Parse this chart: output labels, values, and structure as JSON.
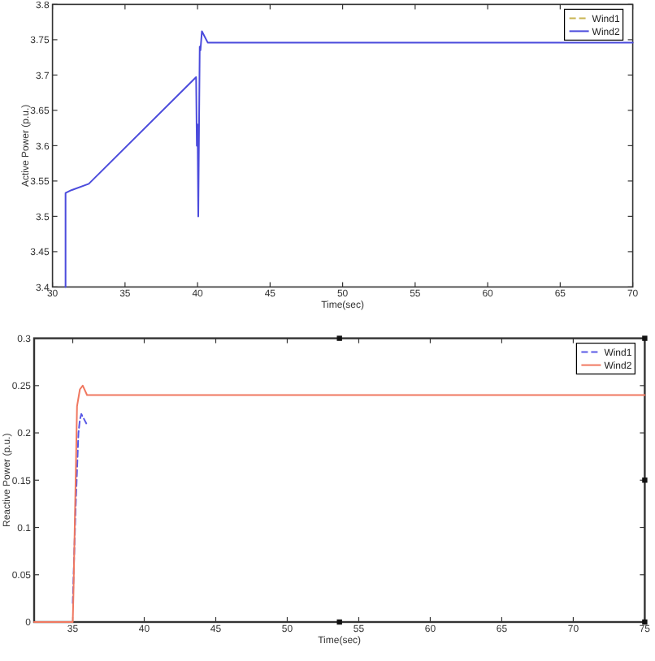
{
  "chart_data": [
    {
      "type": "line",
      "xlabel": "Time(sec)",
      "ylabel": "Active Power (p.u.)",
      "xlim": [
        30,
        70
      ],
      "ylim": [
        3.4,
        3.8
      ],
      "xticks": [
        30,
        35,
        40,
        45,
        50,
        55,
        60,
        65,
        70
      ],
      "yticks": [
        3.4,
        3.45,
        3.5,
        3.55,
        3.6,
        3.65,
        3.7,
        3.75,
        3.8
      ],
      "legend": "top right",
      "series": [
        {
          "name": "Wind1",
          "color": "#c8b450",
          "line_style": "dashed"
        },
        {
          "name": "Wind2",
          "color": "#4b4bdc",
          "line_style": "solid",
          "x": [
            30.9,
            30.9,
            31.3,
            32.5,
            39.9,
            39.95,
            40.0,
            40.05,
            40.15,
            40.2,
            40.3,
            40.7,
            70
          ],
          "values": [
            3.4,
            3.533,
            3.537,
            3.546,
            3.697,
            3.6,
            3.63,
            3.5,
            3.74,
            3.735,
            3.762,
            3.746,
            3.746
          ]
        }
      ]
    },
    {
      "type": "line",
      "xlabel": "Time(sec)",
      "ylabel": "Reactive Power (p.u.)",
      "xlim": [
        32.3,
        75
      ],
      "ylim": [
        0,
        0.3
      ],
      "xticks": [
        35,
        40,
        45,
        50,
        55,
        60,
        65,
        70,
        75
      ],
      "yticks": [
        0,
        0.05,
        0.1,
        0.15,
        0.2,
        0.25,
        0.3
      ],
      "legend": "top right",
      "series": [
        {
          "name": "Wind1",
          "color": "#5a5ae6",
          "line_style": "dashed",
          "x": [
            35.0,
            35.2,
            35.4,
            35.5,
            35.6,
            35.95
          ],
          "values": [
            0.02,
            0.12,
            0.2,
            0.214,
            0.22,
            0.21
          ]
        },
        {
          "name": "Wind2",
          "color": "#f07860",
          "line_style": "solid",
          "x": [
            32.3,
            35.0,
            35.05,
            35.3,
            35.5,
            35.7,
            36.0,
            75
          ],
          "values": [
            0,
            0,
            0.03,
            0.228,
            0.246,
            0.25,
            0.24,
            0.24
          ]
        }
      ]
    }
  ]
}
